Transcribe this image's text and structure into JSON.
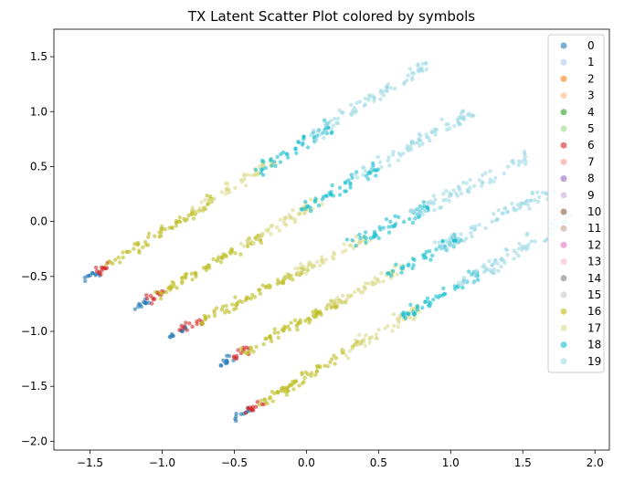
{
  "chart_data": {
    "type": "scatter",
    "title": "TX Latent Scatter Plot colored by symbols",
    "xlabel": "",
    "ylabel": "",
    "xlim": [
      -1.75,
      2.1
    ],
    "ylim": [
      -2.08,
      1.75
    ],
    "x_ticks": [
      -1.5,
      -1.0,
      -0.5,
      0.0,
      0.5,
      1.0,
      1.5,
      2.0
    ],
    "x_tick_labels": [
      "−1.5",
      "−1.0",
      "−0.5",
      "0.0",
      "0.5",
      "1.0",
      "1.5",
      "2.0"
    ],
    "y_ticks": [
      -2.0,
      -1.5,
      -1.0,
      -0.5,
      0.0,
      0.5,
      1.0,
      1.5
    ],
    "y_tick_labels": [
      "−2.0",
      "−1.5",
      "−1.0",
      "−0.5",
      "0.0",
      "0.5",
      "1.0",
      "1.5"
    ],
    "grid": false,
    "legend_position": "top-right",
    "marker_alpha": 0.6,
    "series": [
      {
        "name": "0",
        "color": "#1f77b4"
      },
      {
        "name": "1",
        "color": "#aec7e8"
      },
      {
        "name": "2",
        "color": "#ff7f0e"
      },
      {
        "name": "3",
        "color": "#ffbb78"
      },
      {
        "name": "4",
        "color": "#2ca02c"
      },
      {
        "name": "5",
        "color": "#98df8a"
      },
      {
        "name": "6",
        "color": "#d62728"
      },
      {
        "name": "7",
        "color": "#ff9896"
      },
      {
        "name": "8",
        "color": "#9467bd"
      },
      {
        "name": "9",
        "color": "#c5b0d5"
      },
      {
        "name": "10",
        "color": "#8c564b"
      },
      {
        "name": "11",
        "color": "#c49c94"
      },
      {
        "name": "12",
        "color": "#e377c2"
      },
      {
        "name": "13",
        "color": "#f7b6d2"
      },
      {
        "name": "14",
        "color": "#7f7f7f"
      },
      {
        "name": "15",
        "color": "#c7c7c7"
      },
      {
        "name": "16",
        "color": "#bcbd22"
      },
      {
        "name": "17",
        "color": "#dbdb8d"
      },
      {
        "name": "18",
        "color": "#17becf"
      },
      {
        "name": "19",
        "color": "#9edae5"
      }
    ],
    "bands": [
      {
        "start": [
          -1.55,
          -0.55
        ],
        "end": [
          0.85,
          1.45
        ]
      },
      {
        "start": [
          -1.2,
          -0.8
        ],
        "end": [
          1.15,
          1.0
        ]
      },
      {
        "start": [
          -0.95,
          -1.05
        ],
        "end": [
          1.55,
          0.6
        ]
      },
      {
        "start": [
          -0.6,
          -1.3
        ],
        "end": [
          1.7,
          0.3
        ]
      },
      {
        "start": [
          -0.5,
          -1.8
        ],
        "end": [
          1.85,
          0.05
        ]
      }
    ],
    "band_segments": [
      {
        "series": "0",
        "from": 0.0,
        "to": 0.05
      },
      {
        "series": "6",
        "from": 0.03,
        "to": 0.09
      },
      {
        "series": "16",
        "from": 0.07,
        "to": 0.38
      },
      {
        "series": "17",
        "from": 0.32,
        "to": 0.55
      },
      {
        "series": "18",
        "from": 0.5,
        "to": 0.72
      },
      {
        "series": "19",
        "from": 0.66,
        "to": 1.0
      }
    ]
  }
}
